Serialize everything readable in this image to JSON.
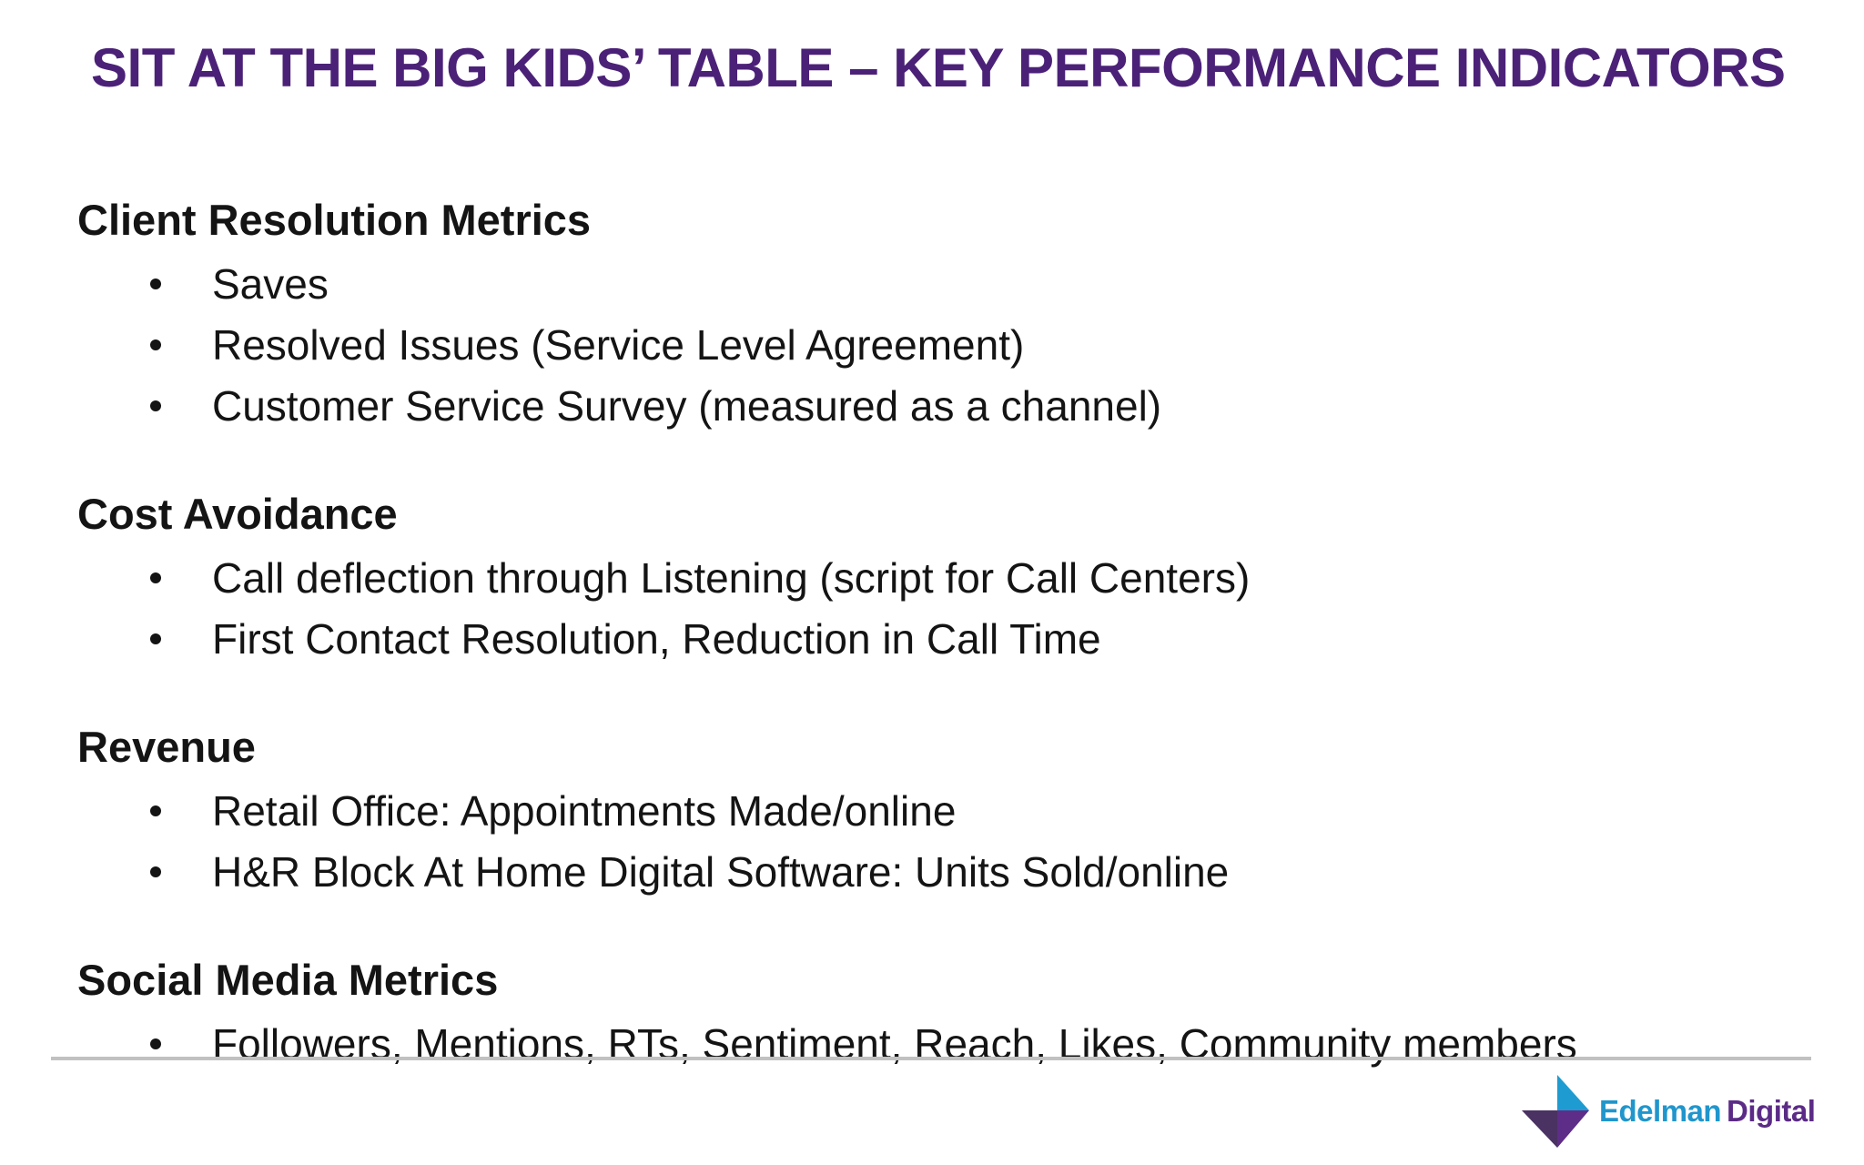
{
  "slide": {
    "title": "SIT AT THE BIG KIDS’ TABLE – KEY PERFORMANCE INDICATORS",
    "sections": [
      {
        "heading": "Client Resolution Metrics",
        "bullets": [
          "Saves",
          "Resolved Issues (Service Level Agreement)",
          "Customer Service Survey (measured as a channel)"
        ]
      },
      {
        "heading": "Cost Avoidance",
        "bullets": [
          "Call deflection through Listening (script for Call Centers)",
          "First Contact Resolution, Reduction in Call Time"
        ]
      },
      {
        "heading": "Revenue",
        "bullets": [
          "Retail Office: Appointments Made/online",
          "H&R Block At Home Digital Software: Units Sold/online"
        ]
      },
      {
        "heading": "Social Media Metrics",
        "bullets": [
          "Followers, Mentions, RTs, Sentiment, Reach, Likes, Community members"
        ]
      }
    ],
    "footer": {
      "logo_brand": "Edelman",
      "logo_suffix": "Digital"
    }
  },
  "colors": {
    "title": "#4B2178",
    "divider": "#C1C1C1",
    "logo_blue": "#2096CC",
    "logo_purple": "#5B2B86",
    "mark_blue": "#1E9CD1",
    "mark_dark": "#4A3263",
    "mark_purple": "#5E2D87"
  }
}
